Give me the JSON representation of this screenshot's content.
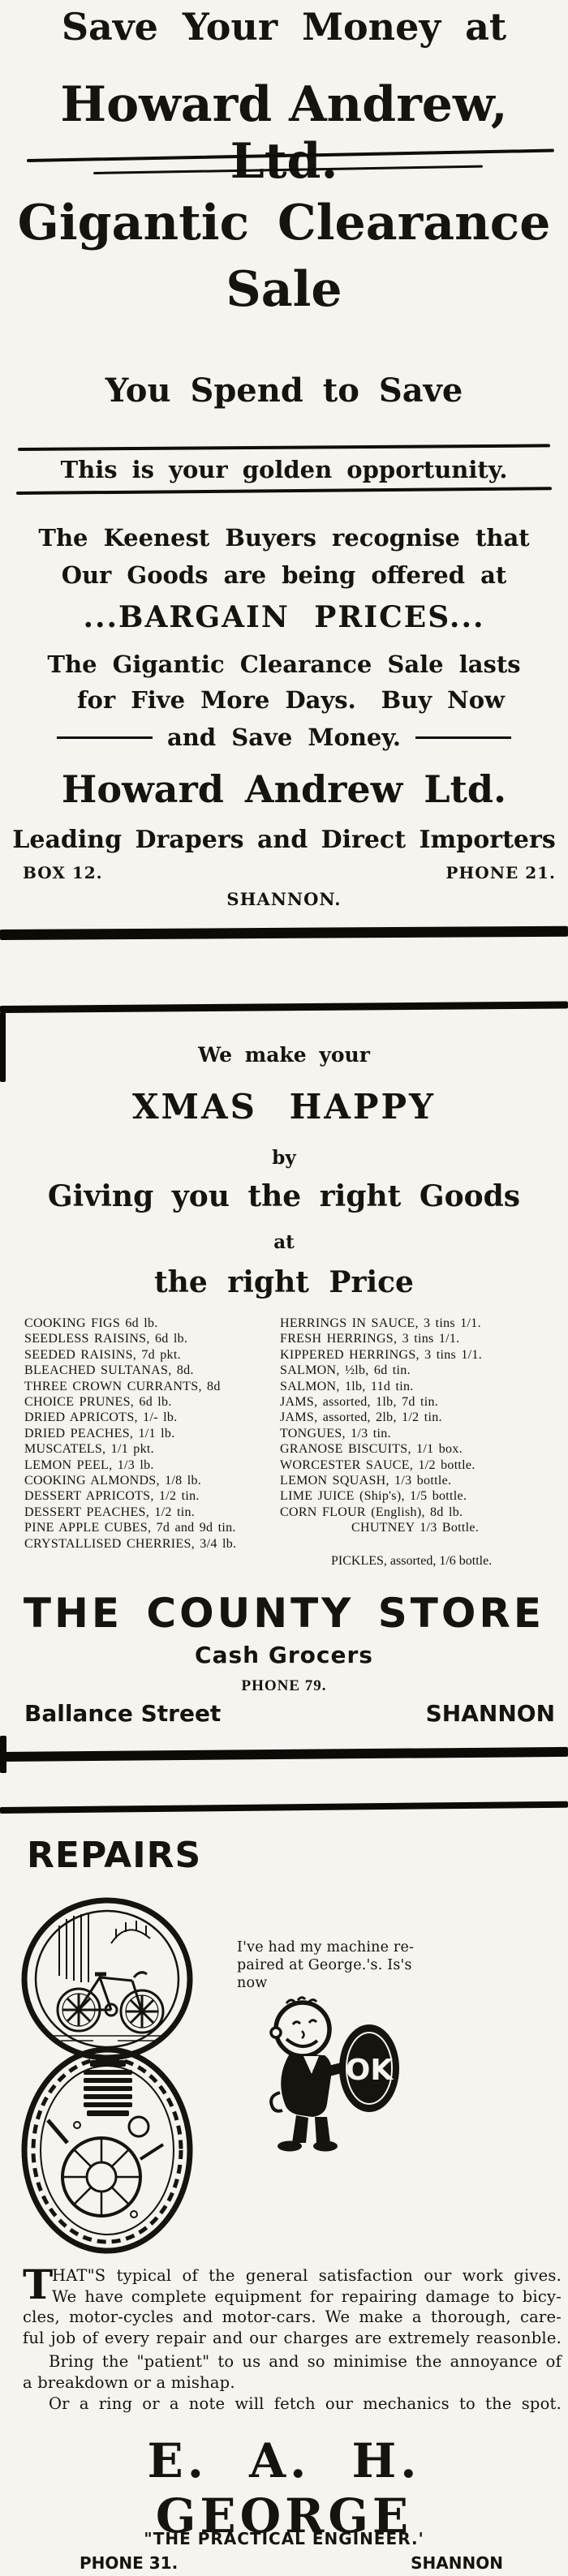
{
  "ad1": {
    "headline1": "Save Your Money at",
    "headline2": "Howard Andrew, Ltd.",
    "headline3_line1": "Gigantic Clearance",
    "headline3_line2": "Sale",
    "subhead": "You Spend to Save",
    "banner": "This is your golden opportunity.",
    "para1_line1": "The Keenest Buyers recognise that",
    "para1_line2": "Our Goods are being offered at",
    "bargain": "...BARGAIN PRICES...",
    "para2_line1": "The Gigantic Clearance Sale lasts",
    "para2_line2a": "for Five More Days.",
    "para2_line2b": "Buy Now",
    "para2_line3": "and Save Money.",
    "company": "Howard Andrew Ltd.",
    "tagline": "Leading Drapers and Direct Importers",
    "box": "BOX 12.",
    "phone": "PHONE 21.",
    "city": "SHANNON."
  },
  "ad2": {
    "intro": "We make your",
    "headline": "XMAS HAPPY",
    "by": "by",
    "line2": "Giving you the right Goods",
    "at": "at",
    "line3": "the right Price",
    "price_list_left": [
      "COOKING FIGS 6d lb.",
      "SEEDLESS RAISINS, 6d lb.",
      "SEEDED RAISINS, 7d pkt.",
      "BLEACHED SULTANAS, 8d.",
      "THREE CROWN CURRANTS, 8d",
      "CHOICE PRUNES, 6d lb.",
      "DRIED APRICOTS, 1/- lb.",
      "DRIED PEACHES, 1/1 lb.",
      "MUSCATELS, 1/1 pkt.",
      "LEMON PEEL, 1/3 lb.",
      "COOKING ALMONDS, 1/8 lb.",
      "DESSERT APRICOTS, 1/2 tin.",
      "DESSERT PEACHES, 1/2 tin.",
      "PINE APPLE CUBES, 7d and 9d tin.",
      "CRYSTALLISED CHERRIES, 3/4 lb."
    ],
    "price_list_right": [
      "HERRINGS IN SAUCE, 3 tins 1/1.",
      "FRESH HERRINGS, 3 tins 1/1.",
      "KIPPERED HERRINGS, 3 tins 1/1.",
      "SALMON, ½lb, 6d tin.",
      "SALMON, 1lb, 11d tin.",
      "JAMS, assorted, 1lb, 7d tin.",
      "JAMS, assorted, 2lb, 1/2 tin.",
      "TONGUES, 1/3 tin.",
      "GRANOSE BISCUITS, 1/1 box.",
      "WORCESTER SAUCE, 1/2 bottle.",
      "LEMON SQUASH, 1/3 bottle.",
      "LIME JUICE (Ship's), 1/5 bottle.",
      "CORN FLOUR (English), 8d lb.",
      "CHUTNEY 1/3 Bottle."
    ],
    "pickles": "PICKLES, assorted, 1/6 bottle.",
    "store": "THE COUNTY STORE",
    "type": "Cash Grocers",
    "phone": "PHONE 79.",
    "street": "Ballance Street",
    "city": "SHANNON"
  },
  "ad3": {
    "headline": "REPAIRS",
    "testimonial_line1": "I've had my machine re-",
    "testimonial_line2": "paired at George.'s. Is's now",
    "ok_label": "OK",
    "body_dropcap": "T",
    "body_lines": [
      "HAT\"S typical of the general satisfaction our work gives.",
      "We have complete equipment for repairing damage to bicy-",
      "cles, motor-cycles and motor-cars. We make a thorough, care-",
      "ful job of every repair and our charges are extremely reasonble."
    ],
    "bring_line1": "Bring the \"patient\" to us and so minimise the annoyance of",
    "bring_line2": "a breakdown or a mishap.",
    "ring_line": "Or a ring or a note will fetch our mechanics to the spot.",
    "name": "E. A. H. GEORGE",
    "engineer": "\"THE PRACTICAL ENGINEER.'",
    "phone": "PHONE 31.",
    "city": "SHANNON"
  }
}
